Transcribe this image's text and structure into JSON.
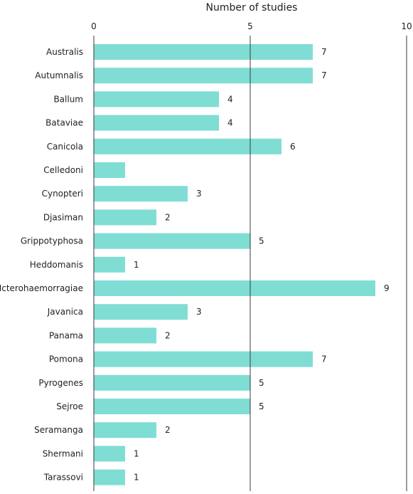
{
  "chart_data": {
    "type": "bar",
    "orientation": "horizontal",
    "title": "",
    "xlabel": "Number of studies",
    "ylabel": "",
    "xlim": [
      0,
      10
    ],
    "x_ticks": [
      0,
      5,
      10
    ],
    "x_axis_position": "top",
    "grid": true,
    "bar_color": "#7fddd4",
    "show_value_labels": true,
    "categories": [
      "Australis",
      "Autumnalis",
      "Ballum",
      "Bataviae",
      "Canicola",
      "Celledoni",
      "Cynopteri",
      "Djasiman",
      "Grippotyphosa",
      "Heddomanis",
      "Icterohaemorragiae",
      "Javanica",
      "Panama",
      "Pomona",
      "Pyrogenes",
      "Sejroe",
      "Seramanga",
      "Shermani",
      "Tarassovi"
    ],
    "values": [
      7,
      7,
      4,
      4,
      6,
      1,
      3,
      2,
      5,
      1,
      9,
      3,
      2,
      7,
      5,
      5,
      2,
      1,
      1
    ],
    "value_labels": [
      "7",
      "7",
      "4",
      "4",
      "6",
      "",
      "3",
      "2",
      "5",
      "1",
      "9",
      "3",
      "2",
      "7",
      "5",
      "5",
      "2",
      "1",
      "1"
    ]
  }
}
